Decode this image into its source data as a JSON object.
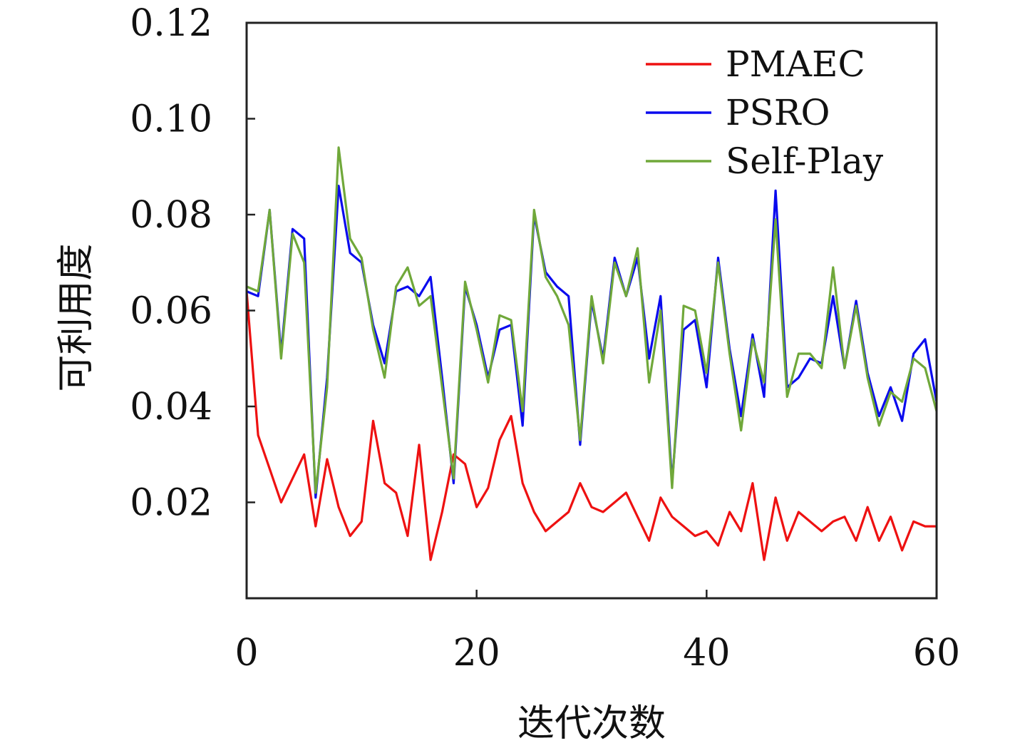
{
  "chart_data": {
    "type": "line",
    "xlabel": "迭代次数",
    "ylabel": "可利用度",
    "xlim": [
      0,
      60
    ],
    "ylim": [
      0,
      0.12
    ],
    "xticks": [
      0,
      20,
      40,
      60
    ],
    "xtick_labels": [
      "0",
      "20",
      "40",
      "60"
    ],
    "yticks": [
      0.02,
      0.04,
      0.06,
      0.08,
      0.1,
      0.12
    ],
    "ytick_labels": [
      "0.02",
      "0.04",
      "0.06",
      "0.08",
      "0.10",
      "0.12"
    ],
    "grid": false,
    "legend_position": "top-right",
    "x": [
      0,
      1,
      2,
      3,
      4,
      5,
      6,
      7,
      8,
      9,
      10,
      11,
      12,
      13,
      14,
      15,
      16,
      17,
      18,
      19,
      20,
      21,
      22,
      23,
      24,
      25,
      26,
      27,
      28,
      29,
      30,
      31,
      32,
      33,
      34,
      35,
      36,
      37,
      38,
      39,
      40,
      41,
      42,
      43,
      44,
      45,
      46,
      47,
      48,
      49,
      50,
      51,
      52,
      53,
      54,
      55,
      56,
      57,
      58,
      59,
      60
    ],
    "series": [
      {
        "name": "PMAEC",
        "color": "#ee1111",
        "values": [
          0.064,
          0.034,
          0.027,
          0.02,
          0.025,
          0.03,
          0.015,
          0.029,
          0.019,
          0.013,
          0.016,
          0.037,
          0.024,
          0.022,
          0.013,
          0.032,
          0.008,
          0.018,
          0.03,
          0.028,
          0.019,
          0.023,
          0.033,
          0.038,
          0.024,
          0.018,
          0.014,
          0.016,
          0.018,
          0.024,
          0.019,
          0.018,
          0.02,
          0.022,
          0.017,
          0.012,
          0.021,
          0.017,
          0.015,
          0.013,
          0.014,
          0.011,
          0.018,
          0.014,
          0.024,
          0.008,
          0.021,
          0.012,
          0.018,
          0.016,
          0.014,
          0.016,
          0.017,
          0.012,
          0.019,
          0.012,
          0.017,
          0.01,
          0.016,
          0.015,
          0.015
        ]
      },
      {
        "name": "PSRO",
        "color": "#0a0aee",
        "values": [
          0.064,
          0.063,
          0.081,
          0.051,
          0.077,
          0.075,
          0.021,
          0.046,
          0.086,
          0.072,
          0.07,
          0.057,
          0.049,
          0.064,
          0.065,
          0.063,
          0.067,
          0.046,
          0.024,
          0.065,
          0.057,
          0.046,
          0.056,
          0.057,
          0.036,
          0.08,
          0.068,
          0.065,
          0.063,
          0.032,
          0.062,
          0.05,
          0.071,
          0.063,
          0.071,
          0.05,
          0.063,
          0.024,
          0.056,
          0.058,
          0.044,
          0.071,
          0.052,
          0.038,
          0.055,
          0.042,
          0.085,
          0.044,
          0.046,
          0.05,
          0.049,
          0.063,
          0.048,
          0.062,
          0.047,
          0.038,
          0.044,
          0.037,
          0.051,
          0.054,
          0.041
        ]
      },
      {
        "name": "Self-Play",
        "color": "#70a83a",
        "values": [
          0.065,
          0.064,
          0.081,
          0.05,
          0.076,
          0.07,
          0.022,
          0.044,
          0.094,
          0.075,
          0.071,
          0.056,
          0.046,
          0.065,
          0.069,
          0.061,
          0.063,
          0.044,
          0.025,
          0.066,
          0.056,
          0.045,
          0.059,
          0.058,
          0.039,
          0.081,
          0.067,
          0.063,
          0.057,
          0.033,
          0.063,
          0.049,
          0.07,
          0.063,
          0.073,
          0.045,
          0.06,
          0.023,
          0.061,
          0.06,
          0.047,
          0.07,
          0.051,
          0.035,
          0.054,
          0.045,
          0.079,
          0.042,
          0.051,
          0.051,
          0.048,
          0.069,
          0.048,
          0.061,
          0.046,
          0.036,
          0.043,
          0.041,
          0.05,
          0.048,
          0.039
        ]
      }
    ]
  }
}
